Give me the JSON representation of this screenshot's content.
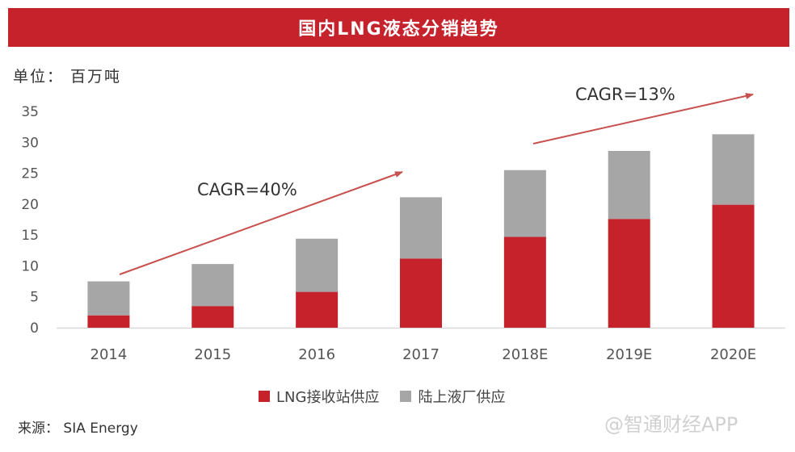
{
  "title": "国内LNG液态分销趋势",
  "unit_label": "单位： 百万吨",
  "source": "来源： SIA Energy",
  "watermark": "@智通财经APP",
  "colors": {
    "title_bar": "#c6222c",
    "series_terminal": "#c6222c",
    "series_plant": "#a6a6a6",
    "arrow": "#c8504f"
  },
  "chart_data": {
    "type": "bar",
    "stacked": true,
    "categories": [
      "2014",
      "2015",
      "2016",
      "2017",
      "2018E",
      "2019E",
      "2020E"
    ],
    "series": [
      {
        "name": "LNG接收站供应",
        "values": [
          2.0,
          3.5,
          5.8,
          11.2,
          14.7,
          17.6,
          19.9
        ]
      },
      {
        "name": "陆上液厂供应",
        "values": [
          5.5,
          6.8,
          8.6,
          9.9,
          10.8,
          11.0,
          11.4
        ]
      }
    ],
    "ylim": [
      0,
      35
    ],
    "yticks": [
      0,
      5,
      10,
      15,
      20,
      25,
      30,
      35
    ],
    "grid": false,
    "legend_position": "bottom",
    "annotations": [
      {
        "text": "CAGR=40%",
        "from_category": "2014",
        "to_category": "2017"
      },
      {
        "text": "CAGR=13%",
        "from_category": "2018E",
        "to_category": "2020E"
      }
    ]
  }
}
